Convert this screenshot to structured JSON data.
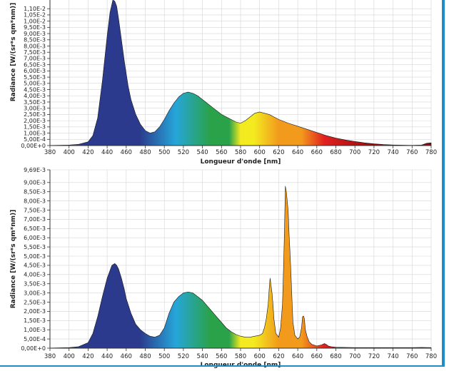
{
  "colors": {
    "frame": "#1f8ec8",
    "grid": "#d6d6d6",
    "blue": "#2b3a8c",
    "spectrum": [
      "#2b3a8c",
      "#26a6d9",
      "#2aa24a",
      "#f3ea20",
      "#f29a1c",
      "#e02020",
      "#8e0c0c"
    ]
  },
  "chart_data": [
    {
      "type": "area",
      "title": "",
      "xlabel": "Longueur d'onde [nm]",
      "ylabel": "Radiance [W/(sr*s qm*nm)]",
      "xlim": [
        380,
        780
      ],
      "ylim": [
        0,
        0.0117
      ],
      "grid": true,
      "x_ticks": [
        "380",
        "400",
        "420",
        "440",
        "460",
        "480",
        "500",
        "520",
        "540",
        "560",
        "580",
        "600",
        "620",
        "640",
        "660",
        "680",
        "700",
        "720",
        "740",
        "760",
        "780"
      ],
      "y_ticks": [
        {
          "value": 0,
          "label": "0,00E+0"
        },
        {
          "value": 0.0005,
          "label": "5,00E-4"
        },
        {
          "value": 0.001,
          "label": "1,00E-3"
        },
        {
          "value": 0.0015,
          "label": "1,50E-3"
        },
        {
          "value": 0.002,
          "label": "2,00E-3"
        },
        {
          "value": 0.0025,
          "label": "2,50E-3"
        },
        {
          "value": 0.003,
          "label": "3,00E-3"
        },
        {
          "value": 0.0035,
          "label": "3,50E-3"
        },
        {
          "value": 0.004,
          "label": "4,00E-3"
        },
        {
          "value": 0.0045,
          "label": "4,50E-3"
        },
        {
          "value": 0.005,
          "label": "5,00E-3"
        },
        {
          "value": 0.0055,
          "label": "5,50E-3"
        },
        {
          "value": 0.006,
          "label": "6,00E-3"
        },
        {
          "value": 0.0065,
          "label": "6,50E-3"
        },
        {
          "value": 0.007,
          "label": "7,00E-3"
        },
        {
          "value": 0.0075,
          "label": "7,50E-3"
        },
        {
          "value": 0.008,
          "label": "8,00E-3"
        },
        {
          "value": 0.0085,
          "label": "8,50E-3"
        },
        {
          "value": 0.009,
          "label": "9,00E-3"
        },
        {
          "value": 0.0095,
          "label": "9,50E-3"
        },
        {
          "value": 0.01,
          "label": "1,00E-2"
        },
        {
          "value": 0.0105,
          "label": "1,05E-2"
        },
        {
          "value": 0.011,
          "label": "1,10E-2"
        }
      ],
      "series": [
        {
          "x": [
            380,
            400,
            410,
            420,
            425,
            430,
            435,
            440,
            443,
            446,
            448,
            450,
            452,
            455,
            458,
            460,
            462,
            465,
            470,
            475,
            480,
            485,
            490,
            495,
            500,
            505,
            510,
            515,
            520,
            525,
            530,
            535,
            540,
            545,
            550,
            555,
            560,
            565,
            570,
            575,
            580,
            585,
            590,
            595,
            600,
            605,
            610,
            615,
            620,
            630,
            640,
            650,
            660,
            670,
            680,
            690,
            700,
            710,
            720,
            730,
            740,
            750,
            760,
            770,
            775,
            780
          ],
          "y": [
            1e-05,
            4e-05,
            0.0001,
            0.0003,
            0.0008,
            0.0022,
            0.0052,
            0.0088,
            0.0107,
            0.0117,
            0.0116,
            0.0112,
            0.0102,
            0.0085,
            0.0068,
            0.0058,
            0.0048,
            0.0037,
            0.0025,
            0.0017,
            0.0012,
            0.001,
            0.0011,
            0.0015,
            0.0021,
            0.0028,
            0.0034,
            0.0039,
            0.0042,
            0.0043,
            0.0042,
            0.004,
            0.0037,
            0.0034,
            0.0031,
            0.0028,
            0.0025,
            0.0023,
            0.0021,
            0.0019,
            0.0018,
            0.002,
            0.0023,
            0.0026,
            0.0027,
            0.0026,
            0.0025,
            0.0023,
            0.0021,
            0.0018,
            0.00155,
            0.0013,
            0.00105,
            0.0008,
            0.0006,
            0.00045,
            0.00033,
            0.00022,
            0.00014,
            8e-05,
            5e-05,
            3e-05,
            2e-05,
            4e-05,
            0.00018,
            0.00022
          ]
        }
      ]
    },
    {
      "type": "area",
      "title": "",
      "xlabel": "Longueur d'onde [nm]",
      "ylabel": "Radiance [W/(sr*s qm*nm)]",
      "xlim": [
        380,
        780
      ],
      "ylim": [
        0,
        0.00969
      ],
      "grid": true,
      "x_ticks": [
        "380",
        "400",
        "420",
        "440",
        "460",
        "480",
        "500",
        "520",
        "540",
        "560",
        "580",
        "600",
        "620",
        "640",
        "660",
        "680",
        "700",
        "720",
        "740",
        "760",
        "780"
      ],
      "y_ticks": [
        {
          "value": 0,
          "label": "0,00E+0"
        },
        {
          "value": 0.0005,
          "label": "5,00E-4"
        },
        {
          "value": 0.001,
          "label": "1,00E-3"
        },
        {
          "value": 0.0015,
          "label": "1,50E-3"
        },
        {
          "value": 0.002,
          "label": "2,00E-3"
        },
        {
          "value": 0.0025,
          "label": "2,50E-3"
        },
        {
          "value": 0.003,
          "label": "3,00E-3"
        },
        {
          "value": 0.0035,
          "label": "3,50E-3"
        },
        {
          "value": 0.004,
          "label": "4,00E-3"
        },
        {
          "value": 0.0045,
          "label": "4,50E-3"
        },
        {
          "value": 0.005,
          "label": "5,00E-3"
        },
        {
          "value": 0.0055,
          "label": "5,50E-3"
        },
        {
          "value": 0.006,
          "label": "6,00E-3"
        },
        {
          "value": 0.0065,
          "label": "6,50E-3"
        },
        {
          "value": 0.007,
          "label": "7,00E-3"
        },
        {
          "value": 0.0075,
          "label": "7,50E-3"
        },
        {
          "value": 0.008,
          "label": "8,00E-3"
        },
        {
          "value": 0.0085,
          "label": "8,50E-3"
        },
        {
          "value": 0.009,
          "label": "9,00E-3"
        },
        {
          "value": 0.00969,
          "label": "9,69E-3"
        }
      ],
      "series": [
        {
          "x": [
            380,
            400,
            410,
            420,
            425,
            430,
            435,
            440,
            445,
            448,
            450,
            452,
            455,
            458,
            460,
            465,
            470,
            475,
            480,
            485,
            490,
            495,
            500,
            505,
            510,
            515,
            520,
            525,
            530,
            535,
            540,
            545,
            550,
            555,
            560,
            565,
            570,
            575,
            580,
            585,
            590,
            595,
            600,
            603,
            605,
            607,
            609,
            610,
            611,
            612,
            613,
            614,
            615,
            617,
            620,
            622,
            624,
            625,
            626,
            627,
            628,
            629,
            630,
            631,
            632,
            633,
            634,
            635,
            637,
            640,
            642,
            644,
            645,
            646,
            647,
            648,
            650,
            652,
            655,
            660,
            665,
            668,
            670,
            672,
            675,
            680,
            690,
            700,
            720,
            740,
            760,
            770,
            780
          ],
          "y": [
            1e-05,
            3e-05,
            8e-05,
            0.0003,
            0.0008,
            0.0017,
            0.0028,
            0.0038,
            0.0045,
            0.0046,
            0.0045,
            0.0043,
            0.0038,
            0.0032,
            0.0027,
            0.0019,
            0.0013,
            0.001,
            0.0008,
            0.00065,
            0.0006,
            0.0007,
            0.0011,
            0.0019,
            0.0025,
            0.0028,
            0.003,
            0.00305,
            0.003,
            0.0028,
            0.0026,
            0.0023,
            0.002,
            0.0017,
            0.0014,
            0.0011,
            0.0009,
            0.00075,
            0.00065,
            0.0006,
            0.0006,
            0.00065,
            0.0007,
            0.0008,
            0.0011,
            0.0016,
            0.0024,
            0.0032,
            0.0038,
            0.0034,
            0.003,
            0.0024,
            0.0016,
            0.0008,
            0.0006,
            0.0011,
            0.0024,
            0.0042,
            0.0062,
            0.0088,
            0.0085,
            0.008,
            0.0074,
            0.0061,
            0.0051,
            0.0039,
            0.0026,
            0.0014,
            0.0007,
            0.0005,
            0.0006,
            0.0011,
            0.0017,
            0.00175,
            0.0016,
            0.001,
            0.0006,
            0.00035,
            0.0002,
            0.00012,
            0.00018,
            0.00025,
            0.0002,
            0.00012,
            8e-05,
            5e-05,
            4e-05,
            3e-05,
            3e-05,
            3e-05,
            3e-05,
            4e-05,
            3e-05
          ]
        }
      ]
    }
  ]
}
